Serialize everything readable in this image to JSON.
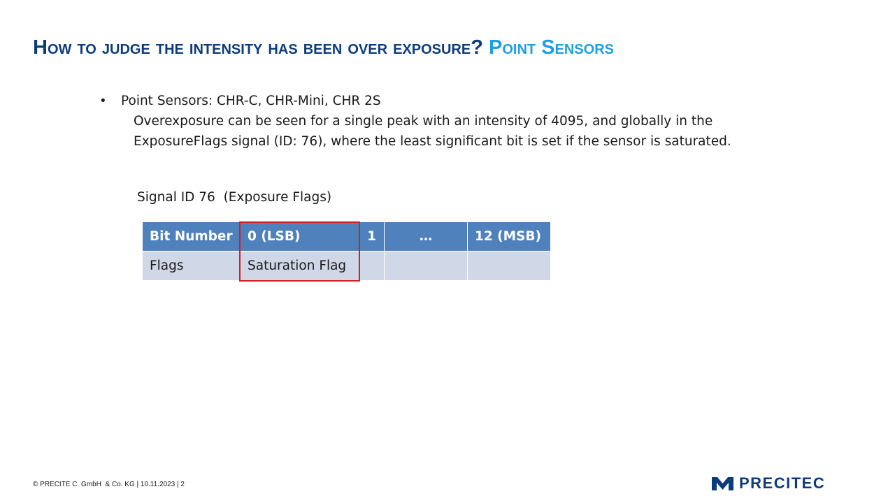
{
  "title": {
    "main": "How to judge the intensity has been over exposure?",
    "accent": "Point Sensors"
  },
  "bullet": {
    "marker": "•",
    "line1": "Point Sensors: CHR-C, CHR-Mini, CHR 2S",
    "line2": "Overexposure can be seen for a single peak with an intensity of 4095, and globally in the",
    "line3": "ExposureFlags signal (ID: 76), where the least significant bit is set if the sensor is saturated."
  },
  "table": {
    "caption": "Signal ID 76  (Exposure Flags)",
    "headers": [
      "Bit Number",
      "0 (LSB)",
      "1",
      "…",
      "12 (MSB)"
    ],
    "rows": [
      [
        "Flags",
        "Saturation Flag",
        "",
        "",
        ""
      ]
    ]
  },
  "colors": {
    "title": "#0c3c7c",
    "title_accent": "#1ea0e0",
    "table_header": "#4f81bd",
    "table_row": "#d0d8e8",
    "highlight": "#d42020"
  },
  "footer": {
    "text": "© PRECITE C  GmbH  & Co. KG | 10.11.2023 | 2"
  },
  "logo": {
    "text": "PRECITEC",
    "icon": "precitec-logo-mark-icon"
  }
}
